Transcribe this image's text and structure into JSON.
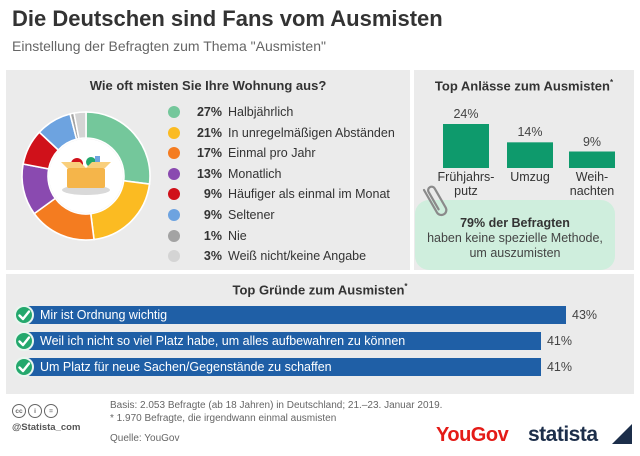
{
  "header": {
    "title": "Die Deutschen sind Fans vom Ausmisten",
    "subtitle": "Einstellung der Befragten zum Thema \"Ausmisten\""
  },
  "colors": {
    "panel_bg": "#ebebeb",
    "bar_green": "#0e9a6c",
    "reason_blue": "#1f5fa6",
    "check_green": "#24a86d",
    "note_bg": "#cfeedd",
    "yougov_red": "#e41b17",
    "statista_navy": "#1c2e4a"
  },
  "chart_data": [
    {
      "type": "pie",
      "title": "Wie oft misten Sie Ihre Wohnung aus?",
      "variant": "donut",
      "categories": [
        "Halbjährlich",
        "In unregelmäßigen Abständen",
        "Einmal pro Jahr",
        "Monatlich",
        "Häufiger als einmal im Monat",
        "Seltener",
        "Nie",
        "Weiß nicht/keine Angabe"
      ],
      "values": [
        27,
        21,
        17,
        13,
        9,
        9,
        1,
        3
      ],
      "value_labels": [
        "27%",
        "21%",
        "17%",
        "13%",
        "9%",
        "9%",
        "1%",
        "3%"
      ],
      "colors": [
        "#74c79b",
        "#fbbb22",
        "#f47c20",
        "#8a4ab0",
        "#d0111a",
        "#6da3e0",
        "#a3a3a3",
        "#d4d4d4"
      ],
      "center_icon": "box-of-items-icon",
      "unit": "%"
    },
    {
      "type": "bar",
      "title": "Top Anlässe zum Ausmisten",
      "title_marker": "*",
      "categories": [
        "Frühjahrs-\nputz",
        "Umzug",
        "Weih-\nnachten"
      ],
      "values": [
        24,
        14,
        9
      ],
      "value_labels": [
        "24%",
        "14%",
        "9%"
      ],
      "ylim": [
        0,
        24
      ],
      "unit": "%",
      "note": {
        "icon": "paperclip-icon",
        "bold": "79% der Befragten",
        "text_line1": "haben keine spezielle Methode,",
        "text_line2": "um auszumisten"
      }
    },
    {
      "type": "bar",
      "orientation": "horizontal",
      "title": "Top Gründe zum Ausmisten",
      "title_marker": "*",
      "categories": [
        "Mir ist Ordnung wichtig",
        "Weil ich nicht so viel Platz habe, um alles aufbewahren zu können",
        "Um Platz für neue Sachen/Gegenstände zu schaffen"
      ],
      "values": [
        43,
        41,
        41
      ],
      "value_labels": [
        "43%",
        "41%",
        "41%"
      ],
      "xlim": [
        0,
        43
      ],
      "unit": "%"
    }
  ],
  "footer": {
    "basis": "Basis: 2.053 Befragte (ab 18 Jahren) in Deutschland; 21.–23. Januar 2019.",
    "footnote": "* 1.970 Befragte, die irgendwann einmal ausmisten",
    "source": "Quelle: YouGov",
    "handle": "@Statista_com",
    "license_icons": [
      "cc",
      "i",
      "="
    ],
    "yougov_logo": "YouGov",
    "statista_logo": "statista"
  }
}
